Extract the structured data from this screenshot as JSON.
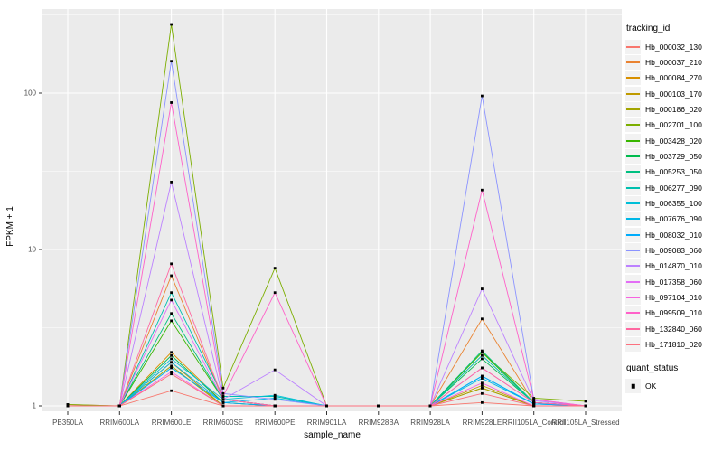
{
  "colors": {
    "background": "#ffffff",
    "panel": "#ebebeb",
    "grid_major": "#ffffff",
    "grid_minor": "#ffffff",
    "tick_mark": "#333333",
    "tick_text": "#4d4d4d",
    "title_text": "#000000",
    "legend_key_bg": "#f2f2f2",
    "point": "#000000"
  },
  "chart_data": {
    "type": "line",
    "title": "",
    "xlabel": "sample_name",
    "ylabel": "FPKM + 1",
    "y_scale": "log10",
    "ylim": [
      0.97,
      345
    ],
    "grid": "on",
    "legend_position": "right",
    "legend_title": "tracking_id",
    "legend2_title": "quant_status",
    "legend2_items": [
      {
        "label": "OK",
        "marker": "black-square"
      }
    ],
    "point_marker": "black-square",
    "y_ticks": [
      {
        "label": "1",
        "value": 1
      },
      {
        "label": "10",
        "value": 10
      },
      {
        "label": "100",
        "value": 100
      }
    ],
    "y_minor_values": [
      3.162,
      31.62,
      316.2
    ],
    "categories": [
      "PB350LA",
      "RRIM600LA",
      "RRIM600LE",
      "RRIM600SE",
      "RRIM600PE",
      "RRIM901LA",
      "RRIM928BA",
      "RRIM928LA",
      "RRIM928LE",
      "RRII105LA_Control",
      "RRII105LA_Stressed"
    ],
    "series": [
      {
        "name": "Hb_000032_130",
        "color": "#F8766D",
        "values": [
          1.02,
          1,
          1.25,
          1,
          1,
          1,
          1,
          1,
          1.05,
          1,
          1
        ]
      },
      {
        "name": "Hb_000037_210",
        "color": "#EA8331",
        "values": [
          1,
          1,
          6.8,
          1.1,
          1,
          1,
          1,
          1,
          3.6,
          1.05,
          1
        ]
      },
      {
        "name": "Hb_000084_270",
        "color": "#D89000",
        "values": [
          1,
          1,
          2.2,
          1.05,
          1,
          1,
          1,
          1,
          1.3,
          1,
          1
        ]
      },
      {
        "name": "Hb_000103_170",
        "color": "#C09B00",
        "values": [
          1,
          1,
          1.9,
          1,
          1,
          1,
          1,
          1,
          1.35,
          1,
          1
        ]
      },
      {
        "name": "Hb_000186_020",
        "color": "#A3A500",
        "values": [
          1,
          1,
          1.8,
          1,
          1,
          1,
          1,
          1,
          1.3,
          1,
          1
        ]
      },
      {
        "name": "Hb_002701_100",
        "color": "#7CAE00",
        "values": [
          1.02,
          1,
          275,
          1.3,
          7.6,
          1,
          1,
          1,
          2.2,
          1.12,
          1.07
        ]
      },
      {
        "name": "Hb_003428_020",
        "color": "#39B600",
        "values": [
          1,
          1,
          3.5,
          1.1,
          1,
          1,
          1,
          1,
          2.2,
          1.05,
          1
        ]
      },
      {
        "name": "Hb_003729_050",
        "color": "#00BB4E",
        "values": [
          1,
          1,
          2.1,
          1.05,
          1,
          1,
          1,
          1,
          2.0,
          1.05,
          1
        ]
      },
      {
        "name": "Hb_005253_050",
        "color": "#00C081",
        "values": [
          1,
          1,
          3.9,
          1.1,
          1,
          1,
          1,
          1,
          2.25,
          1.05,
          1
        ]
      },
      {
        "name": "Hb_006277_090",
        "color": "#00C0AF",
        "values": [
          1,
          1,
          5.3,
          1.15,
          1.15,
          1,
          1,
          1,
          2.1,
          1.05,
          1
        ]
      },
      {
        "name": "Hb_006355_100",
        "color": "#00BFD8",
        "values": [
          1,
          1,
          2.0,
          1.1,
          1.17,
          1,
          1,
          1,
          1.55,
          1.03,
          1
        ]
      },
      {
        "name": "Hb_007676_090",
        "color": "#00B8E7",
        "values": [
          1,
          1,
          1.9,
          1.05,
          1.12,
          1,
          1,
          1,
          1.5,
          1.03,
          1
        ]
      },
      {
        "name": "Hb_008032_010",
        "color": "#00ACFC",
        "values": [
          1,
          1,
          1.75,
          1.05,
          1,
          1,
          1,
          1,
          1.55,
          1.03,
          1
        ]
      },
      {
        "name": "Hb_009083_060",
        "color": "#8B93FF",
        "values": [
          1,
          1,
          160,
          1.2,
          1.1,
          1,
          1,
          1,
          96,
          1.1,
          1
        ]
      },
      {
        "name": "Hb_014870_010",
        "color": "#BC81FF",
        "values": [
          1,
          1,
          27,
          1.1,
          1.7,
          1,
          1,
          1,
          5.6,
          1.08,
          1
        ]
      },
      {
        "name": "Hb_017358_060",
        "color": "#E36EF6",
        "values": [
          1,
          1,
          4.75,
          1.1,
          1,
          1,
          1,
          1,
          1.75,
          1.05,
          1
        ]
      },
      {
        "name": "Hb_097104_010",
        "color": "#F763E0",
        "values": [
          1,
          1,
          1.65,
          1,
          1,
          1,
          1,
          1,
          1.4,
          1,
          1
        ]
      },
      {
        "name": "Hb_099509_010",
        "color": "#FF61C9",
        "values": [
          1,
          1,
          87,
          1.15,
          5.3,
          1,
          1,
          1,
          24,
          1.1,
          1
        ]
      },
      {
        "name": "Hb_132840_060",
        "color": "#FF68A1",
        "values": [
          1,
          1,
          8.1,
          1.1,
          1,
          1,
          1,
          1,
          1.75,
          1.05,
          1
        ]
      },
      {
        "name": "Hb_171810_020",
        "color": "#FC717F",
        "values": [
          1,
          1,
          1.6,
          1,
          1,
          1,
          1,
          1,
          1.2,
          1,
          1
        ]
      }
    ]
  }
}
